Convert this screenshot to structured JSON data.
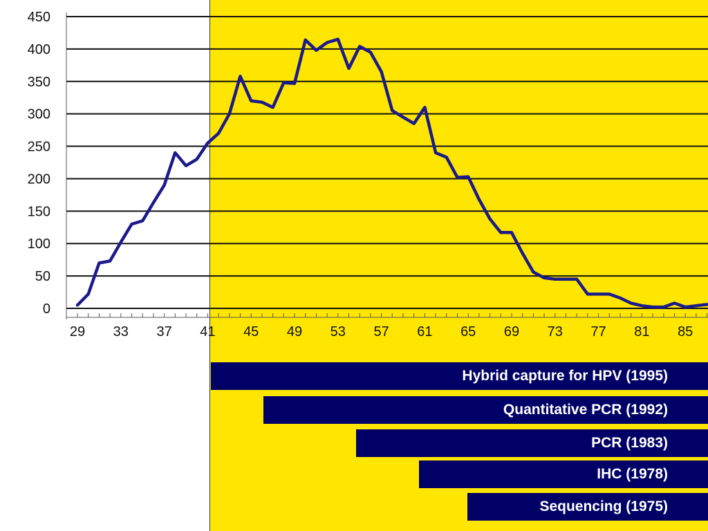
{
  "colors": {
    "highlight": "#ffe600",
    "line": "#1a1a8c",
    "bar": "#000066",
    "grid": "#111111"
  },
  "chart_data": {
    "type": "line",
    "title": "",
    "xlabel": "",
    "ylabel": "",
    "ylim": [
      0,
      450
    ],
    "xlim": [
      29,
      88
    ],
    "y_ticks": [
      "0",
      "50",
      "100",
      "150",
      "200",
      "250",
      "300",
      "350",
      "400",
      "450"
    ],
    "x_ticks": [
      "29",
      "33",
      "37",
      "41",
      "45",
      "49",
      "53",
      "57",
      "61",
      "65",
      "69",
      "73",
      "77",
      "81",
      "85"
    ],
    "grid": "horizontal",
    "highlight_from_x": 41,
    "series": [
      {
        "x": [
          29,
          30,
          31,
          32,
          33,
          34,
          35,
          36,
          37,
          38,
          39,
          40,
          41,
          42,
          43,
          44,
          45,
          46,
          47,
          48,
          49,
          50,
          51,
          52,
          53,
          54,
          55,
          56,
          57,
          58,
          59,
          60,
          61,
          62,
          63,
          64,
          65,
          66,
          67,
          68,
          69,
          70,
          71,
          72,
          73,
          74,
          75,
          76,
          77,
          78,
          79,
          80,
          81,
          82,
          83,
          84,
          85,
          86,
          87
        ],
        "y": [
          5,
          22,
          70,
          73,
          102,
          130,
          135,
          163,
          190,
          240,
          220,
          230,
          255,
          270,
          300,
          358,
          320,
          318,
          310,
          348,
          347,
          414,
          398,
          410,
          415,
          370,
          404,
          395,
          365,
          305,
          295,
          285,
          310,
          240,
          233,
          202,
          203,
          168,
          138,
          117,
          117,
          85,
          56,
          47,
          45,
          45,
          45,
          22,
          22,
          22,
          16,
          8,
          4,
          2,
          2,
          8,
          2,
          4,
          6
        ]
      }
    ]
  },
  "timeline": [
    {
      "label": "Hybrid capture for HPV (1995)"
    },
    {
      "label": "Quantitative PCR (1992)"
    },
    {
      "label": "PCR (1983)"
    },
    {
      "label": "IHC (1978)"
    },
    {
      "label": "Sequencing (1975)"
    }
  ]
}
